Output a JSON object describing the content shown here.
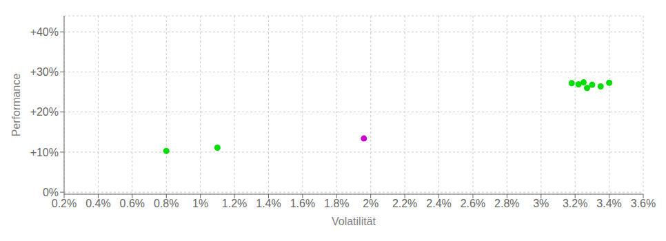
{
  "chart_data": {
    "type": "scatter",
    "xlabel": "Volatilität",
    "ylabel": "Performance",
    "xlim": [
      0.002,
      0.036
    ],
    "ylim": [
      -0.005,
      0.44
    ],
    "xticks": [
      {
        "value": 0.002,
        "label": "0.2%"
      },
      {
        "value": 0.004,
        "label": "0.4%"
      },
      {
        "value": 0.006,
        "label": "0.6%"
      },
      {
        "value": 0.008,
        "label": "0.8%"
      },
      {
        "value": 0.01,
        "label": "1%"
      },
      {
        "value": 0.012,
        "label": "1.2%"
      },
      {
        "value": 0.014,
        "label": "1.4%"
      },
      {
        "value": 0.016,
        "label": "1.6%"
      },
      {
        "value": 0.018,
        "label": "1.8%"
      },
      {
        "value": 0.02,
        "label": "2%"
      },
      {
        "value": 0.022,
        "label": "2.2%"
      },
      {
        "value": 0.024,
        "label": "2.4%"
      },
      {
        "value": 0.026,
        "label": "2.6%"
      },
      {
        "value": 0.028,
        "label": "2.8%"
      },
      {
        "value": 0.03,
        "label": "3%"
      },
      {
        "value": 0.032,
        "label": "3.2%"
      },
      {
        "value": 0.034,
        "label": "3.4%"
      },
      {
        "value": 0.036,
        "label": "3.6%"
      }
    ],
    "yticks": [
      {
        "value": 0.0,
        "label": "0%"
      },
      {
        "value": 0.1,
        "label": "+10%"
      },
      {
        "value": 0.2,
        "label": "+20%"
      },
      {
        "value": 0.3,
        "label": "+30%"
      },
      {
        "value": 0.4,
        "label": "+40%"
      }
    ],
    "grid": true,
    "series": [
      {
        "color": "#00dd00",
        "x": [
          0.008,
          0.011,
          0.0318,
          0.0322,
          0.0325,
          0.0327,
          0.033,
          0.0335,
          0.034
        ],
        "values": [
          0.103,
          0.111,
          0.272,
          0.269,
          0.274,
          0.26,
          0.268,
          0.264,
          0.273
        ]
      },
      {
        "color": "#cc00cc",
        "x": [
          0.0196
        ],
        "values": [
          0.134
        ]
      }
    ]
  }
}
